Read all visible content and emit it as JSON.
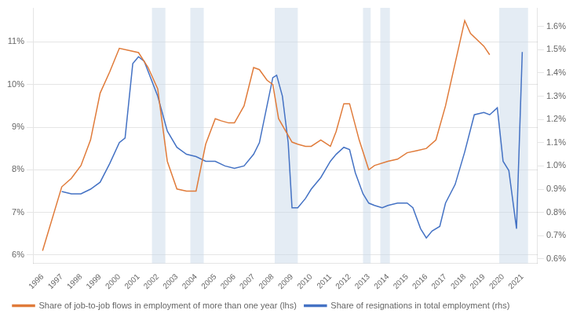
{
  "chart_data": {
    "type": "line",
    "series": [
      {
        "name": "Share of job-to-job flows in employment of more than one year (lhs)",
        "color": "#E07B3A",
        "x": [
          1996,
          1997,
          1997.5,
          1998,
          1998.5,
          1999,
          1999.5,
          2000,
          2000.5,
          2001,
          2001.5,
          2002,
          2002.5,
          2003,
          2003.5,
          2004,
          2004.5,
          2005,
          2005.3,
          2005.7,
          2006,
          2006.5,
          2007,
          2007.3,
          2007.7,
          2008,
          2008.3,
          2009,
          2009.3,
          2009.7,
          2010,
          2010.5,
          2011,
          2011.3,
          2011.7,
          2012,
          2012.5,
          2013,
          2013.3,
          2014,
          2014.5,
          2015,
          2015.5,
          2016,
          2016.5,
          2017,
          2017.5,
          2018,
          2018.3,
          2019,
          2019.3
        ],
        "values": [
          6.1,
          7.6,
          7.8,
          8.1,
          8.7,
          9.8,
          10.3,
          10.85,
          10.8,
          10.75,
          10.4,
          9.9,
          8.2,
          7.55,
          7.5,
          7.5,
          8.6,
          9.2,
          9.15,
          9.1,
          9.1,
          9.5,
          10.4,
          10.35,
          10.1,
          10.0,
          9.2,
          8.65,
          8.6,
          8.55,
          8.55,
          8.7,
          8.55,
          8.9,
          9.55,
          9.55,
          8.7,
          8.0,
          8.1,
          8.2,
          8.25,
          8.4,
          8.45,
          8.5,
          8.7,
          9.5,
          10.5,
          11.5,
          11.2,
          10.9,
          10.7
        ]
      },
      {
        "name": "Share of resignations in total employment (rhs)",
        "color": "#4472C4",
        "axis": "y2",
        "x": [
          1997,
          1997.5,
          1998,
          1998.5,
          1999,
          1999.5,
          2000,
          2000.3,
          2000.7,
          2001,
          2001.3,
          2002,
          2002.5,
          2003,
          2003.5,
          2004,
          2004.5,
          2005,
          2005.5,
          2006,
          2006.5,
          2007,
          2007.3,
          2007.7,
          2008,
          2008.2,
          2008.5,
          2008.8,
          2009,
          2009.3,
          2009.7,
          2010,
          2010.5,
          2011,
          2011.3,
          2011.7,
          2012,
          2012.3,
          2012.7,
          2013,
          2013.3,
          2013.7,
          2014,
          2014.5,
          2015,
          2015.3,
          2015.7,
          2016,
          2016.3,
          2016.7,
          2017,
          2017.5,
          2018,
          2018.5,
          2019,
          2019.3,
          2019.7,
          2020,
          2020.3,
          2020.7,
          2021
        ],
        "values": [
          0.89,
          0.88,
          0.88,
          0.9,
          0.93,
          1.01,
          1.1,
          1.12,
          1.44,
          1.47,
          1.45,
          1.3,
          1.15,
          1.08,
          1.05,
          1.04,
          1.02,
          1.02,
          1.0,
          0.99,
          1.0,
          1.05,
          1.1,
          1.26,
          1.38,
          1.39,
          1.3,
          1.1,
          0.82,
          0.82,
          0.86,
          0.9,
          0.95,
          1.02,
          1.05,
          1.08,
          1.07,
          0.97,
          0.88,
          0.84,
          0.83,
          0.82,
          0.83,
          0.84,
          0.84,
          0.82,
          0.73,
          0.69,
          0.72,
          0.74,
          0.84,
          0.92,
          1.06,
          1.22,
          1.23,
          1.22,
          1.25,
          1.02,
          0.98,
          0.73,
          1.49
        ]
      }
    ],
    "shaded_regions": [
      [
        2001.7,
        2002.4
      ],
      [
        2003.7,
        2004.4
      ],
      [
        2008.1,
        2009.3
      ],
      [
        2012.7,
        2013.1
      ],
      [
        2013.6,
        2014.1
      ],
      [
        2019.8,
        2021.3
      ]
    ],
    "xlim": [
      1995.5,
      2021.8
    ],
    "xticks": [
      1996,
      1997,
      1998,
      1999,
      2000,
      2001,
      2002,
      2003,
      2004,
      2005,
      2006,
      2007,
      2008,
      2009,
      2010,
      2011,
      2012,
      2013,
      2014,
      2015,
      2016,
      2017,
      2018,
      2019,
      2020,
      2021
    ],
    "ylim": [
      5.8,
      11.8
    ],
    "yticks": [
      {
        "value": 6,
        "label": "6%"
      },
      {
        "value": 7,
        "label": "7%"
      },
      {
        "value": 8,
        "label": "8%"
      },
      {
        "value": 9,
        "label": "9%"
      },
      {
        "value": 10,
        "label": "10%"
      },
      {
        "value": 11,
        "label": "11%"
      }
    ],
    "y2lim": [
      0.58,
      1.68
    ],
    "y2ticks": [
      {
        "value": 0.6,
        "label": "0.6%"
      },
      {
        "value": 0.7,
        "label": "0.7%"
      },
      {
        "value": 0.8,
        "label": "0.8%"
      },
      {
        "value": 0.9,
        "label": "0.9%"
      },
      {
        "value": 1.0,
        "label": "1.0%"
      },
      {
        "value": 1.1,
        "label": "1.1%"
      },
      {
        "value": 1.2,
        "label": "1.2%"
      },
      {
        "value": 1.3,
        "label": "1.3%"
      },
      {
        "value": 1.4,
        "label": "1.4%"
      },
      {
        "value": 1.5,
        "label": "1.5%"
      },
      {
        "value": 1.6,
        "label": "1.6%"
      }
    ],
    "grid": "y",
    "legend": "bottom"
  }
}
